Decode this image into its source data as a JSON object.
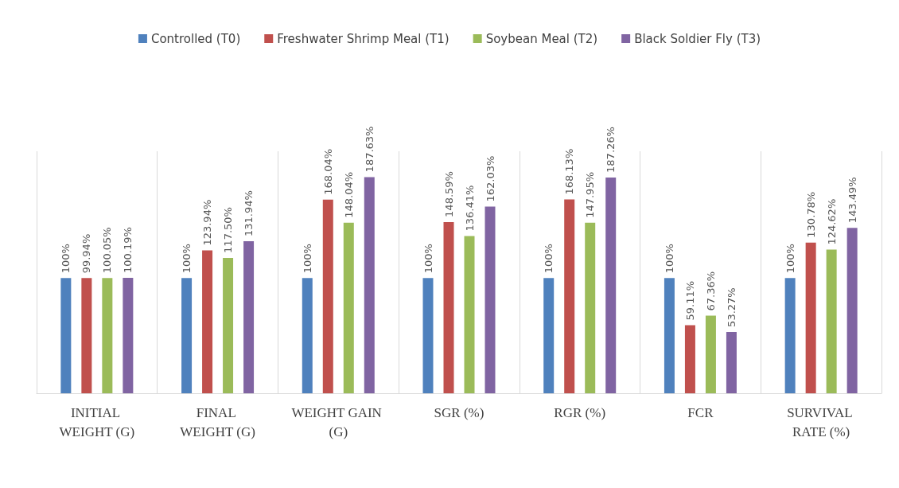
{
  "chart_data": {
    "type": "bar",
    "categories": [
      "INITIAL WEIGHT (G)",
      "FINAL WEIGHT (G)",
      "WEIGHT GAIN (G)",
      "SGR (%)",
      "RGR (%)",
      "FCR",
      "SURVIVAL RATE (%)"
    ],
    "series": [
      {
        "name": "Controlled (T0)",
        "color": "#4f81bd",
        "values": [
          100,
          100,
          100,
          100,
          100,
          100,
          100
        ],
        "value_labels": [
          "100%",
          "100%",
          "100%",
          "100%",
          "100%",
          "100%",
          "100%"
        ]
      },
      {
        "name": "Freshwater Shrimp Meal (T1)",
        "color": "#c0504d",
        "values": [
          99.94,
          123.94,
          168.04,
          148.59,
          168.13,
          59.11,
          130.78
        ],
        "value_labels": [
          "99.94%",
          "123.94%",
          "168.04%",
          "148.59%",
          "168.13%",
          "59.11%",
          "130.78%"
        ]
      },
      {
        "name": "Soybean Meal (T2)",
        "color": "#9bbb59",
        "values": [
          100.05,
          117.5,
          148.04,
          136.41,
          147.95,
          67.36,
          124.62
        ],
        "value_labels": [
          "100.05%",
          "117.50%",
          "148.04%",
          "136.41%",
          "147.95%",
          "67.36%",
          "124.62%"
        ]
      },
      {
        "name": "Black Soldier Fly (T3)",
        "color": "#8064a2",
        "values": [
          100.19,
          131.94,
          187.63,
          162.03,
          187.26,
          53.27,
          143.49
        ],
        "value_labels": [
          "100.19%",
          "131.94%",
          "187.63%",
          "162.03%",
          "187.26%",
          "53.27%",
          "143.49%"
        ]
      }
    ],
    "grid": "x",
    "legend": "top"
  }
}
